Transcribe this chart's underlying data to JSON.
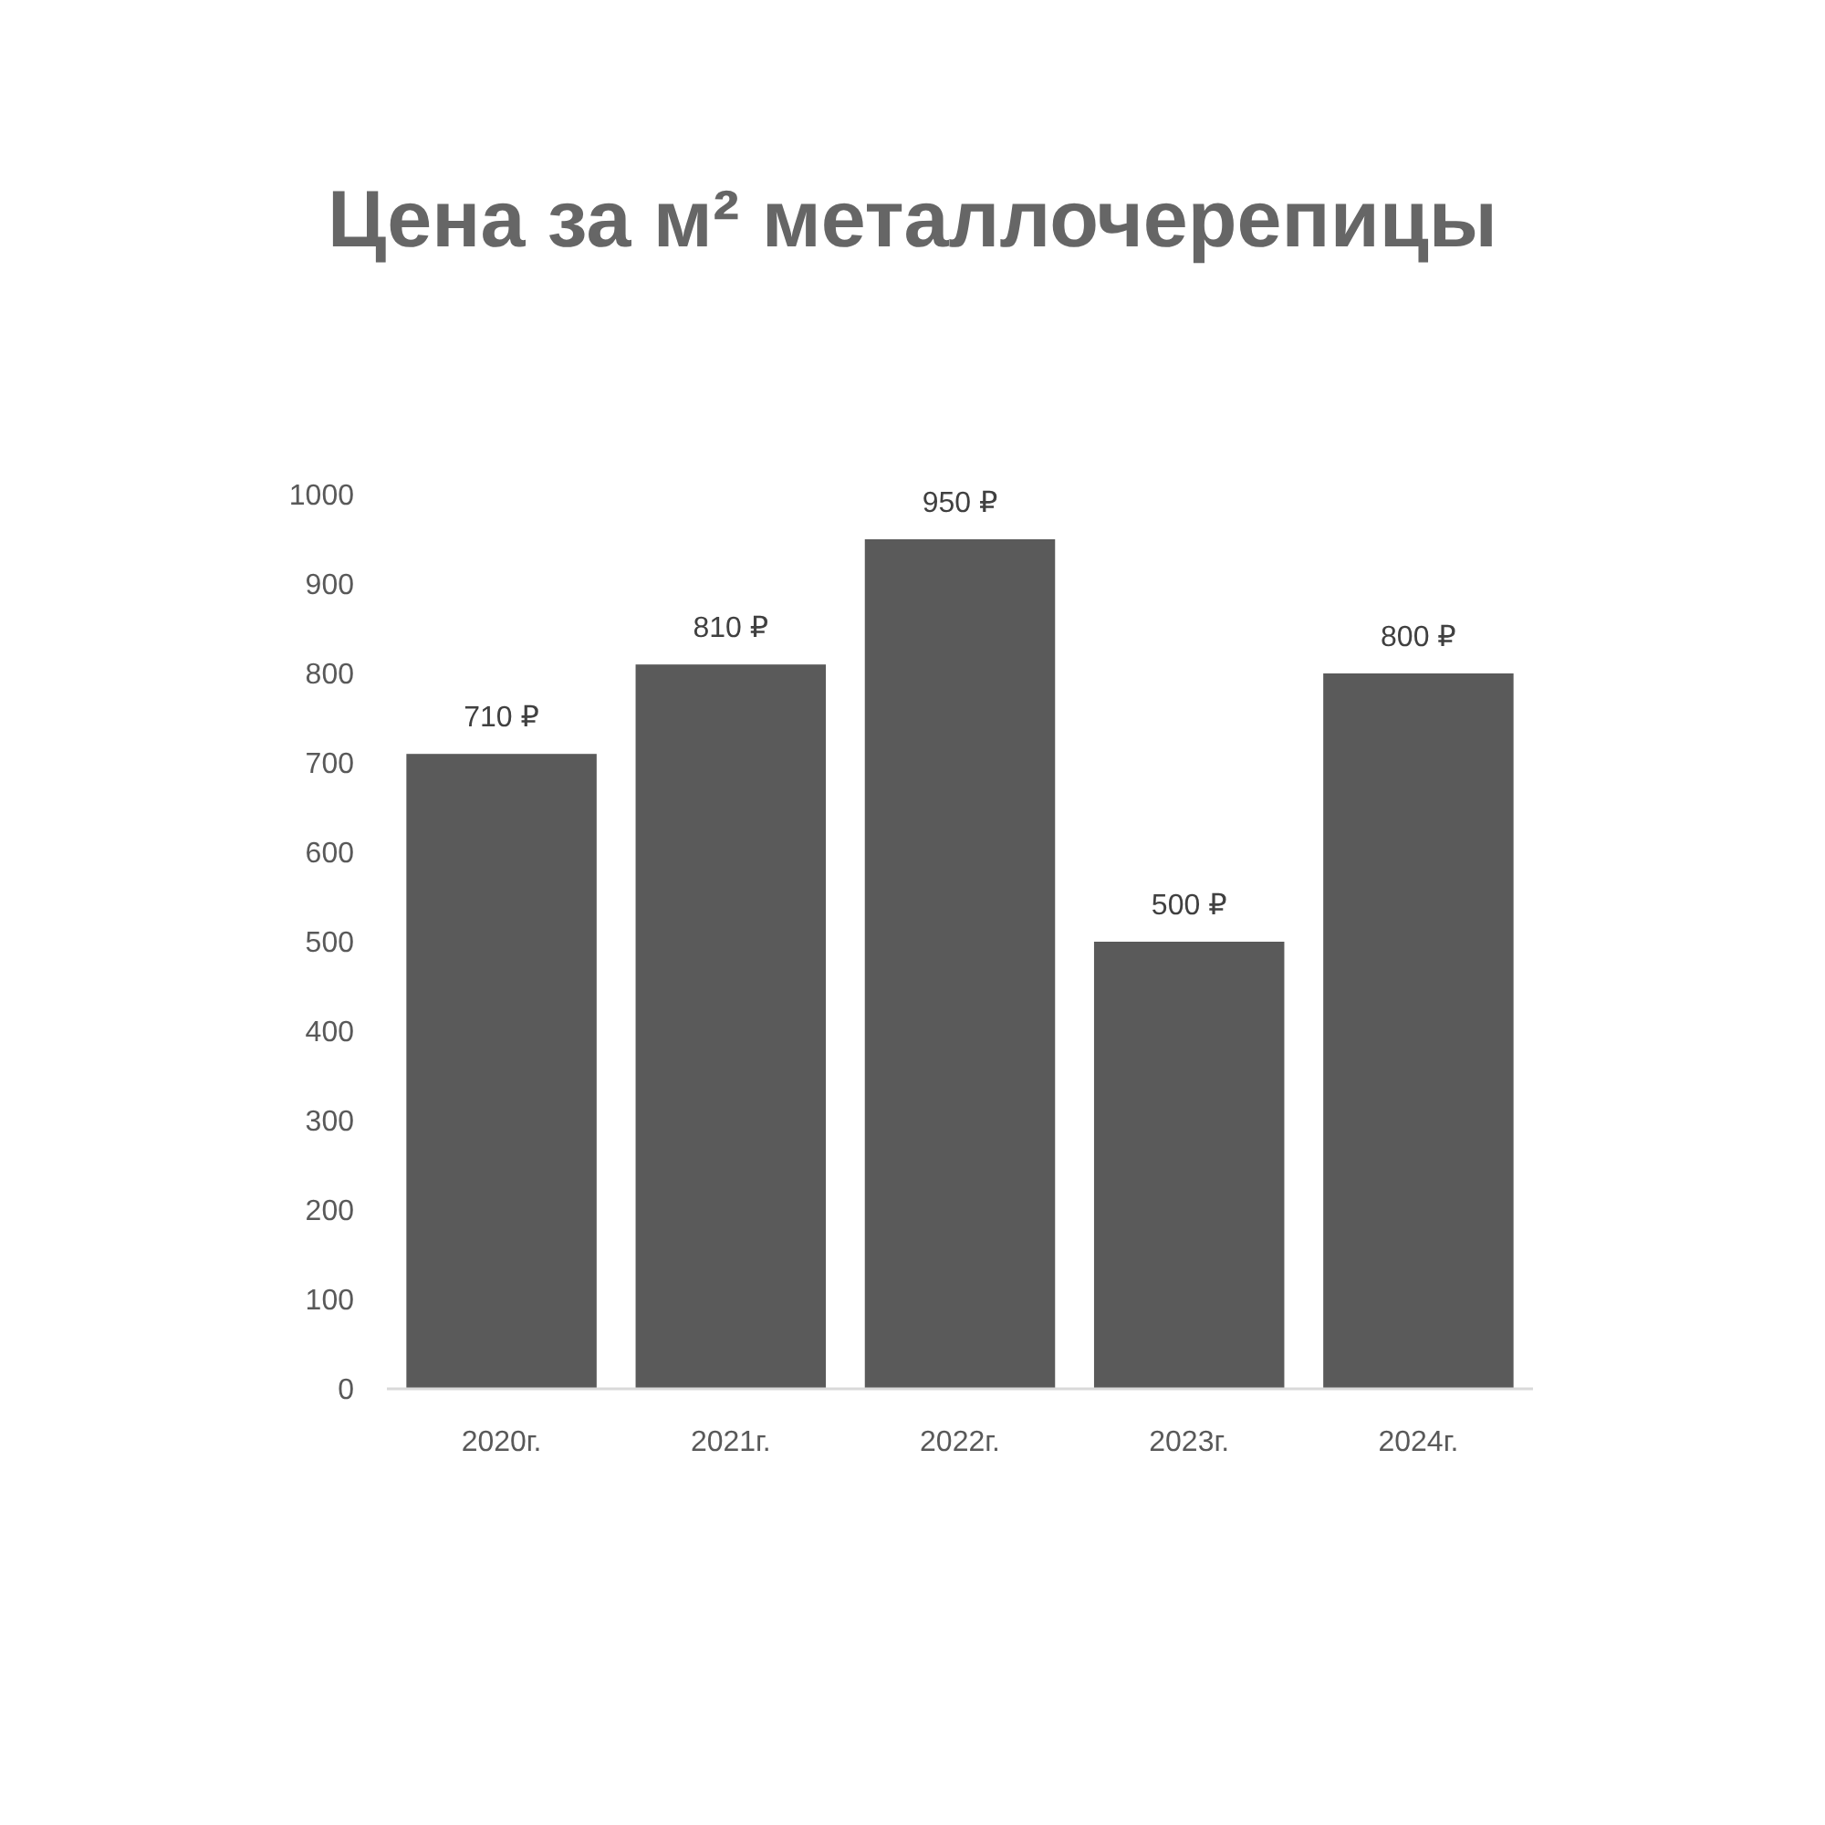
{
  "chart_data": {
    "type": "bar",
    "title": "Цена за м² металлочерепицы",
    "categories": [
      "2020г.",
      "2021г.",
      "2022г.",
      "2023г.",
      "2024г."
    ],
    "values": [
      710,
      810,
      950,
      500,
      800
    ],
    "value_labels": [
      "710 ₽",
      "810 ₽",
      "950 ₽",
      "500 ₽",
      "800 ₽"
    ],
    "color": "#5a5a5a",
    "ylim": [
      0,
      1000
    ],
    "yticks": [
      0,
      100,
      200,
      300,
      400,
      500,
      600,
      700,
      800,
      900,
      1000
    ],
    "grid": false
  }
}
